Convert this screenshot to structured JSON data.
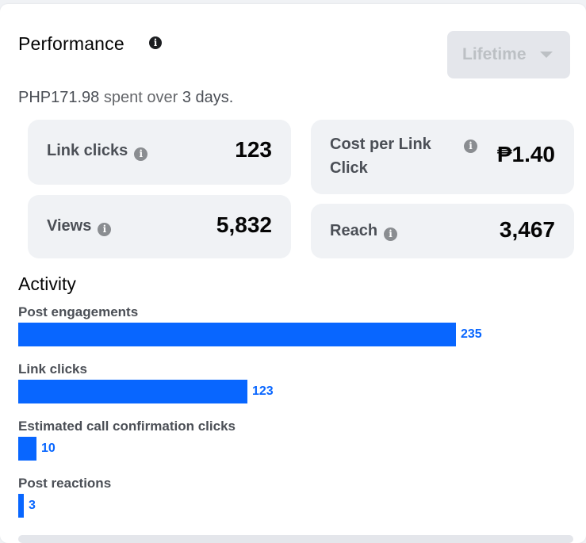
{
  "header": {
    "title": "Performance",
    "dropdown_label": "Lifetime"
  },
  "spend": {
    "amount": "PHP171.98",
    "middle": " spent over ",
    "days_count": "3",
    "days_word": " days."
  },
  "metrics": [
    {
      "label_line1": "Link clicks",
      "label_line2": "",
      "value": "123"
    },
    {
      "label_line1": "Cost per Link",
      "label_line2": "Click",
      "value": "₱1.40"
    },
    {
      "label_line1": "Views",
      "label_line2": "",
      "value": "5,832"
    },
    {
      "label_line1": "Reach",
      "label_line2": "",
      "value": "3,467"
    }
  ],
  "activity": {
    "title": "Activity",
    "items": [
      {
        "label": "Post engagements",
        "value": "235",
        "amount": 235
      },
      {
        "label": "Link clicks",
        "value": "123",
        "amount": 123
      },
      {
        "label": "Estimated call confirmation clicks",
        "value": "10",
        "amount": 10
      },
      {
        "label": "Post reactions",
        "value": "3",
        "amount": 3
      }
    ]
  },
  "colors": {
    "accent": "#0866ff",
    "tile_bg": "#f0f2f5"
  },
  "icons": {
    "info": "info-icon",
    "dropdown": "chevron-down-icon"
  }
}
